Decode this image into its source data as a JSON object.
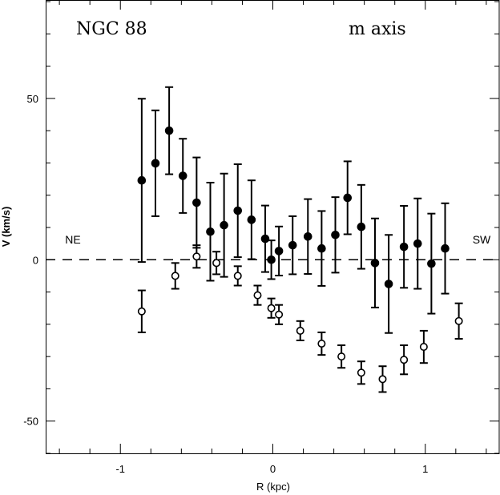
{
  "chart_data": {
    "type": "scatter",
    "title": "NGC 88",
    "subtitle": "m axis",
    "xlabel": "R (kpc)",
    "ylabel": "V (km/s)",
    "xlim": [
      -1.49,
      1.49
    ],
    "ylim": [
      -60,
      80.5
    ],
    "xticks": [
      {
        "value": -1,
        "label": "-1"
      },
      {
        "value": 0,
        "label": "0"
      },
      {
        "value": 1,
        "label": "1"
      }
    ],
    "yticks": [
      {
        "value": -50,
        "label": "-50"
      },
      {
        "value": 0,
        "label": "0"
      },
      {
        "value": 50,
        "label": "50"
      }
    ],
    "x_minor_step": 0.2,
    "y_minor_step": 10,
    "annotations": [
      {
        "text": "NE",
        "x": -1.4,
        "y": 5
      },
      {
        "text": "SW",
        "x": 1.37,
        "y": 5
      }
    ],
    "reference_line": {
      "y": 0,
      "style": "dashed"
    },
    "series": [
      {
        "name": "filled",
        "marker": "filled-circle",
        "x": [
          -0.86,
          -0.77,
          -0.68,
          -0.59,
          -0.5,
          -0.41,
          -0.32,
          -0.23,
          -0.14,
          -0.05,
          -0.01,
          0.04,
          0.13,
          0.23,
          0.32,
          0.41,
          0.49,
          0.58,
          0.67,
          0.76,
          0.86,
          0.95,
          1.04,
          1.13
        ],
        "y": [
          24.6,
          29.9,
          40,
          26,
          17.7,
          8.7,
          10.7,
          15.2,
          12.4,
          6.5,
          0,
          2.7,
          4.5,
          7.2,
          3.5,
          7.7,
          19.2,
          10.2,
          -1,
          -7.5,
          4,
          5,
          -1.2,
          3.5
        ],
        "err": [
          25.3,
          16.4,
          13.5,
          11.5,
          14,
          15.2,
          16,
          14.4,
          12.2,
          10.3,
          6,
          7.6,
          9,
          11.6,
          11.6,
          11.7,
          11.3,
          13,
          13.8,
          15.2,
          12.7,
          14,
          15.5,
          14
        ]
      },
      {
        "name": "open",
        "marker": "open-circle",
        "x": [
          -0.86,
          -0.64,
          -0.5,
          -0.37,
          -0.23,
          -0.1,
          -0.01,
          0.04,
          0.18,
          0.32,
          0.45,
          0.58,
          0.72,
          0.86,
          0.99,
          1.22
        ],
        "y": [
          -16,
          -5,
          1,
          -1,
          -5,
          -11,
          -15,
          -17,
          -22,
          -26,
          -30,
          -35,
          -37,
          -31,
          -27,
          -19
        ],
        "err": [
          6.5,
          4,
          3.5,
          3.5,
          3,
          3,
          3,
          3,
          3,
          3.5,
          3.5,
          3.5,
          4,
          4.5,
          5,
          5.5
        ]
      }
    ]
  }
}
